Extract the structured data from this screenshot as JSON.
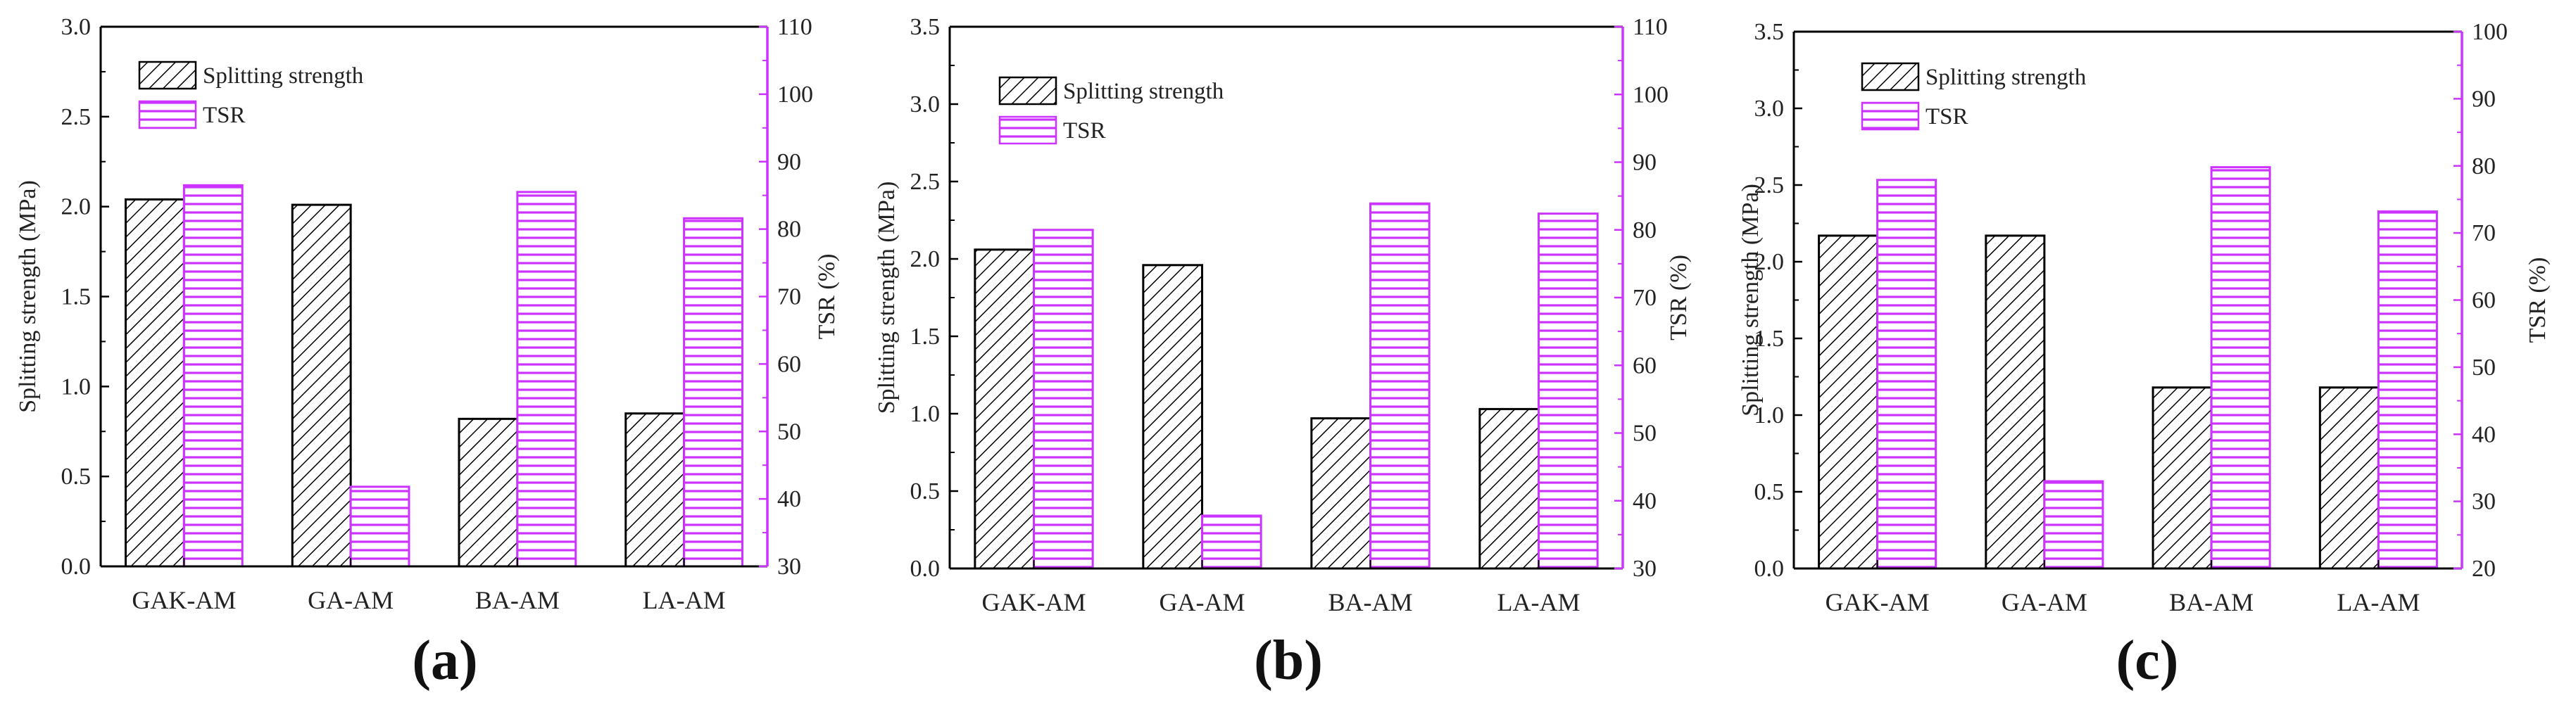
{
  "colors": {
    "left_axis": "#000000",
    "right_axis": "#cc33ff",
    "strength_hatch": "#000000",
    "tsr_hatch": "#cc33ff",
    "background": "#ffffff"
  },
  "chart_data": [
    {
      "type": "bar",
      "panel_label": "(a)",
      "panel_letter": "a",
      "categories": [
        "GAK-AM",
        "GA-AM",
        "BA-AM",
        "LA-AM"
      ],
      "series": [
        {
          "name": "Splitting strength",
          "axis": "left",
          "values": [
            2.04,
            2.01,
            0.82,
            0.85
          ]
        },
        {
          "name": "TSR",
          "axis": "right",
          "values": [
            86.5,
            41.8,
            85.5,
            81.6
          ]
        }
      ],
      "ylabel": "Splitting strength (MPa)",
      "y2label": "TSR (%)",
      "ylim": [
        0,
        3.0
      ],
      "y2lim": [
        30,
        110
      ],
      "yticks": [
        "0.0",
        "0.5",
        "1.0",
        "1.5",
        "2.0",
        "2.5",
        "3.0"
      ],
      "y2ticks": [
        "30",
        "40",
        "50",
        "60",
        "70",
        "80",
        "90",
        "100",
        "110"
      ],
      "legend": [
        "Splitting strength",
        "TSR"
      ],
      "legend_position": "top-left"
    },
    {
      "type": "bar",
      "panel_label": "(b)",
      "panel_letter": "b",
      "categories": [
        "GAK-AM",
        "GA-AM",
        "BA-AM",
        "LA-AM"
      ],
      "series": [
        {
          "name": "Splitting strength",
          "axis": "left",
          "values": [
            2.06,
            1.96,
            0.97,
            1.03
          ]
        },
        {
          "name": "TSR",
          "axis": "right",
          "values": [
            80.0,
            37.8,
            83.9,
            82.4
          ]
        }
      ],
      "ylabel": "Splitting strength (MPa)",
      "y2label": "TSR (%)",
      "ylim": [
        0,
        3.5
      ],
      "y2lim": [
        30,
        110
      ],
      "yticks": [
        "0.0",
        "0.5",
        "1.0",
        "1.5",
        "2.0",
        "2.5",
        "3.0",
        "3.5"
      ],
      "y2ticks": [
        "30",
        "40",
        "50",
        "60",
        "70",
        "80",
        "90",
        "100",
        "110"
      ],
      "legend": [
        "Splitting strength",
        "TSR"
      ],
      "legend_position": "top-left"
    },
    {
      "type": "bar",
      "panel_label": "(c)",
      "panel_letter": "c",
      "categories": [
        "GAK-AM",
        "GA-AM",
        "BA-AM",
        "LA-AM"
      ],
      "series": [
        {
          "name": "Splitting strength",
          "axis": "left",
          "values": [
            2.17,
            2.17,
            1.18,
            1.18
          ]
        },
        {
          "name": "TSR",
          "axis": "right",
          "values": [
            77.9,
            33.0,
            79.8,
            73.2
          ]
        }
      ],
      "ylabel": "Splitting strength (MPa)",
      "y2label": "TSR (%)",
      "ylim": [
        0,
        3.5
      ],
      "y2lim": [
        20,
        100
      ],
      "yticks": [
        "0.0",
        "0.5",
        "1.0",
        "1.5",
        "2.0",
        "2.5",
        "3.0",
        "3.5"
      ],
      "y2ticks": [
        "20",
        "30",
        "40",
        "50",
        "60",
        "70",
        "80",
        "90",
        "100"
      ],
      "legend": [
        "Splitting strength",
        "TSR"
      ],
      "legend_position": "top-left"
    }
  ]
}
